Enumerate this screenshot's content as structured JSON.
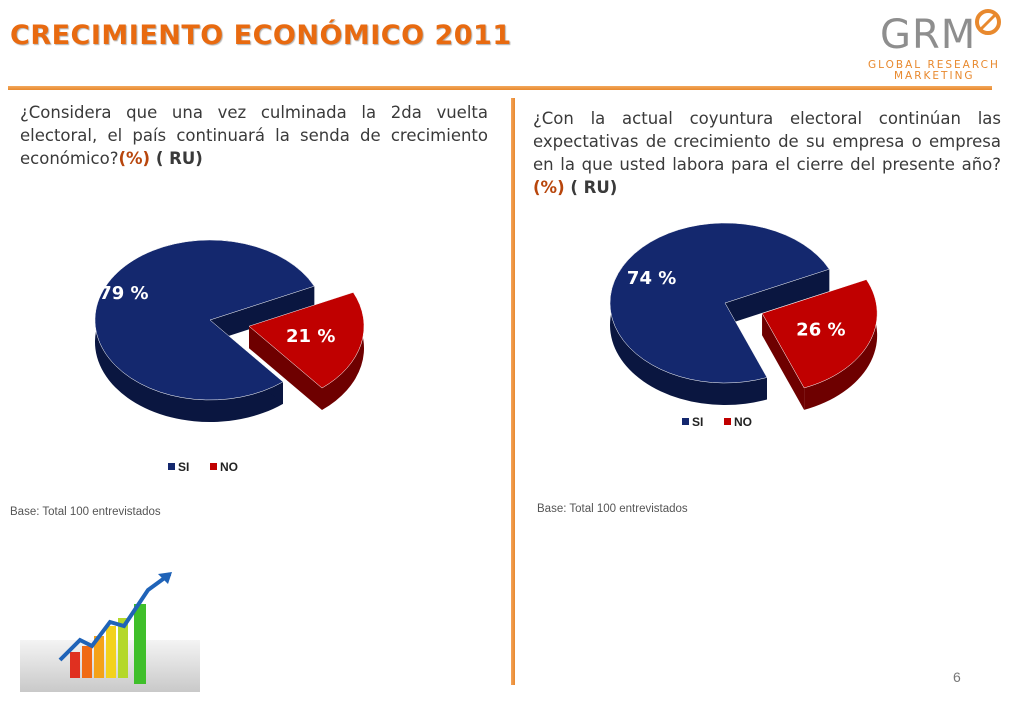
{
  "header": {
    "title": "CRECIMIENTO ECONÓMICO 2011",
    "logo_main": "GRM",
    "logo_line1": "GLOBAL RESEARCH",
    "logo_line2": "MARKETING"
  },
  "left": {
    "question": "¿Considera que una vez culminada la 2da vuelta electoral, el país continuará la senda de crecimiento económico?",
    "pct_tag": "(%)",
    "ru_tag": " ( RU)",
    "base": "Base: Total  100  entrevistados"
  },
  "right": {
    "question": "¿Con la actual coyuntura electoral continúan las expectativas de crecimiento de su empresa o empresa en la que usted labora para el cierre del presente año?",
    "pct_tag": "(%)",
    "ru_tag": " ( RU)",
    "base": "Base: Total  100  entrevistados"
  },
  "page_number": "6",
  "colors": {
    "si": "#14286e",
    "no": "#c00000",
    "accent": "#e8892e",
    "title": "#e86a10"
  },
  "chart_data": [
    {
      "type": "pie",
      "categories": [
        "SI",
        "NO"
      ],
      "values": [
        79,
        21
      ],
      "labels": [
        "79 %",
        "21 %"
      ],
      "legend": [
        "SI",
        "NO"
      ],
      "legend_position": "bottom"
    },
    {
      "type": "pie",
      "categories": [
        "SI",
        "NO"
      ],
      "values": [
        74,
        26
      ],
      "labels": [
        "74 %",
        "26 %"
      ],
      "legend": [
        "SI",
        "NO"
      ],
      "legend_position": "bottom"
    }
  ]
}
